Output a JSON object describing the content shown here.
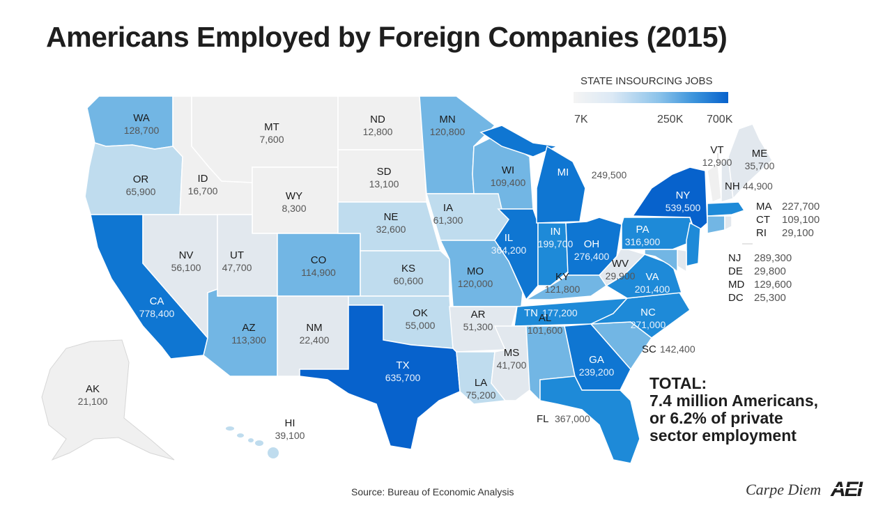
{
  "title": "Americans Employed by Foreign Companies (2015)",
  "legend": {
    "title": "STATE INSOURCING JOBS",
    "ticks": [
      "7K",
      "250K",
      "700K"
    ]
  },
  "colors": {
    "lowest": "#f0f0f0",
    "low": "#e2e8ee",
    "light": "#bfdcee",
    "medium": "#72b6e4",
    "mid_dark": "#1e8ad8",
    "dark": "#0f76d2",
    "darkest": "#0762cc",
    "ext_line": "#c8c8c8"
  },
  "states": [
    {
      "abbr": "WA",
      "value": "128,700"
    },
    {
      "abbr": "OR",
      "value": "65,900"
    },
    {
      "abbr": "CA",
      "value": "778,400"
    },
    {
      "abbr": "NV",
      "value": "56,100"
    },
    {
      "abbr": "ID",
      "value": "16,700"
    },
    {
      "abbr": "MT",
      "value": "7,600"
    },
    {
      "abbr": "WY",
      "value": "8,300"
    },
    {
      "abbr": "UT",
      "value": "47,700"
    },
    {
      "abbr": "AZ",
      "value": "113,300"
    },
    {
      "abbr": "CO",
      "value": "114,900"
    },
    {
      "abbr": "NM",
      "value": "22,400"
    },
    {
      "abbr": "ND",
      "value": "12,800"
    },
    {
      "abbr": "SD",
      "value": "13,100"
    },
    {
      "abbr": "NE",
      "value": "32,600"
    },
    {
      "abbr": "KS",
      "value": "60,600"
    },
    {
      "abbr": "OK",
      "value": "55,000"
    },
    {
      "abbr": "TX",
      "value": "635,700"
    },
    {
      "abbr": "MN",
      "value": "120,800"
    },
    {
      "abbr": "IA",
      "value": "61,300"
    },
    {
      "abbr": "MO",
      "value": "120,000"
    },
    {
      "abbr": "AR",
      "value": "51,300"
    },
    {
      "abbr": "LA",
      "value": "75,200"
    },
    {
      "abbr": "WI",
      "value": "109,400"
    },
    {
      "abbr": "IL",
      "value": "364,200"
    },
    {
      "abbr": "MS",
      "value": "41,700"
    },
    {
      "abbr": "MI",
      "value": "249,500"
    },
    {
      "abbr": "IN",
      "value": "199,700"
    },
    {
      "abbr": "OH",
      "value": "276,400"
    },
    {
      "abbr": "KY",
      "value": "121,800"
    },
    {
      "abbr": "TN",
      "value": "177,200"
    },
    {
      "abbr": "AL",
      "value": "101,600"
    },
    {
      "abbr": "GA",
      "value": "239,200"
    },
    {
      "abbr": "FL",
      "value": "367,000"
    },
    {
      "abbr": "SC",
      "value": "142,400"
    },
    {
      "abbr": "NC",
      "value": "271,000"
    },
    {
      "abbr": "VA",
      "value": "201,400"
    },
    {
      "abbr": "WV",
      "value": "29,900"
    },
    {
      "abbr": "PA",
      "value": "316,900"
    },
    {
      "abbr": "NY",
      "value": "539,500"
    },
    {
      "abbr": "VT",
      "value": "12,900"
    },
    {
      "abbr": "NH",
      "value": "44,900"
    },
    {
      "abbr": "ME",
      "value": "35,700"
    },
    {
      "abbr": "MA",
      "value": "227,700"
    },
    {
      "abbr": "CT",
      "value": "109,100"
    },
    {
      "abbr": "RI",
      "value": "29,100"
    },
    {
      "abbr": "NJ",
      "value": "289,300"
    },
    {
      "abbr": "DE",
      "value": "29,800"
    },
    {
      "abbr": "MD",
      "value": "129,600"
    },
    {
      "abbr": "DC",
      "value": "25,300"
    },
    {
      "abbr": "AK",
      "value": "21,100"
    },
    {
      "abbr": "HI",
      "value": "39,100"
    }
  ],
  "total": {
    "line1": "TOTAL:",
    "line2": "7.4 million Americans,",
    "line3": "or 6.2% of private",
    "line4": "sector employment"
  },
  "source": "Source: Bureau of Economic Analysis",
  "brand": "Carpe Diem",
  "logo_text": "AEI"
}
